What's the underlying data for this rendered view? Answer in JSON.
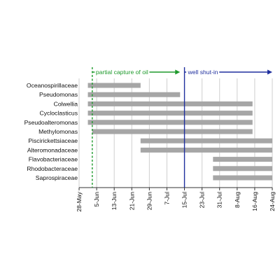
{
  "chart_data": {
    "type": "bar",
    "orientation": "horizontal-range",
    "x_axis_unit": "day",
    "x_ticks": [
      "28-May",
      "5-Jun",
      "13-Jun",
      "21-Jun",
      "29-Jun",
      "7-Jul",
      "15-Jul",
      "23-Jul",
      "31-Jul",
      "8-Aug",
      "16-Aug",
      "24-Aug"
    ],
    "categories": [
      "Oceanospirillaceae",
      "Pseudomonas",
      "Colwellia",
      "Cycloclasticus",
      "Pseudoalteromonas",
      "Methylomonas",
      "Piscirickettsiaceae",
      "Alteromonadaceae",
      "Flavobacteriaceae",
      "Rhodobacteraceae",
      "Saprospiraceae"
    ],
    "ranges": [
      [
        "2010-06-01",
        "2010-06-25"
      ],
      [
        "2010-06-01",
        "2010-07-13"
      ],
      [
        "2010-06-01",
        "2010-08-15"
      ],
      [
        "2010-06-01",
        "2010-08-15"
      ],
      [
        "2010-06-01",
        "2010-08-15"
      ],
      [
        "2010-06-03",
        "2010-08-15"
      ],
      [
        "2010-06-25",
        "2010-08-24"
      ],
      [
        "2010-06-25",
        "2010-08-24"
      ],
      [
        "2010-07-28",
        "2010-08-24"
      ],
      [
        "2010-07-28",
        "2010-08-24"
      ],
      [
        "2010-07-28",
        "2010-08-24"
      ]
    ],
    "annotations": [
      {
        "label": "partial capture of oil",
        "date": "2010-06-03",
        "end": "2010-07-13",
        "style": "dashed",
        "color": "#1e9a2c"
      },
      {
        "label": "well shut-in",
        "date": "2010-07-15",
        "end": "2010-08-24",
        "style": "solid",
        "color": "#1f2f9e"
      }
    ],
    "bar_color": "#a6a6a6",
    "grid": "vertical",
    "legend": "none",
    "title": "",
    "xlabel": "",
    "ylabel": ""
  }
}
